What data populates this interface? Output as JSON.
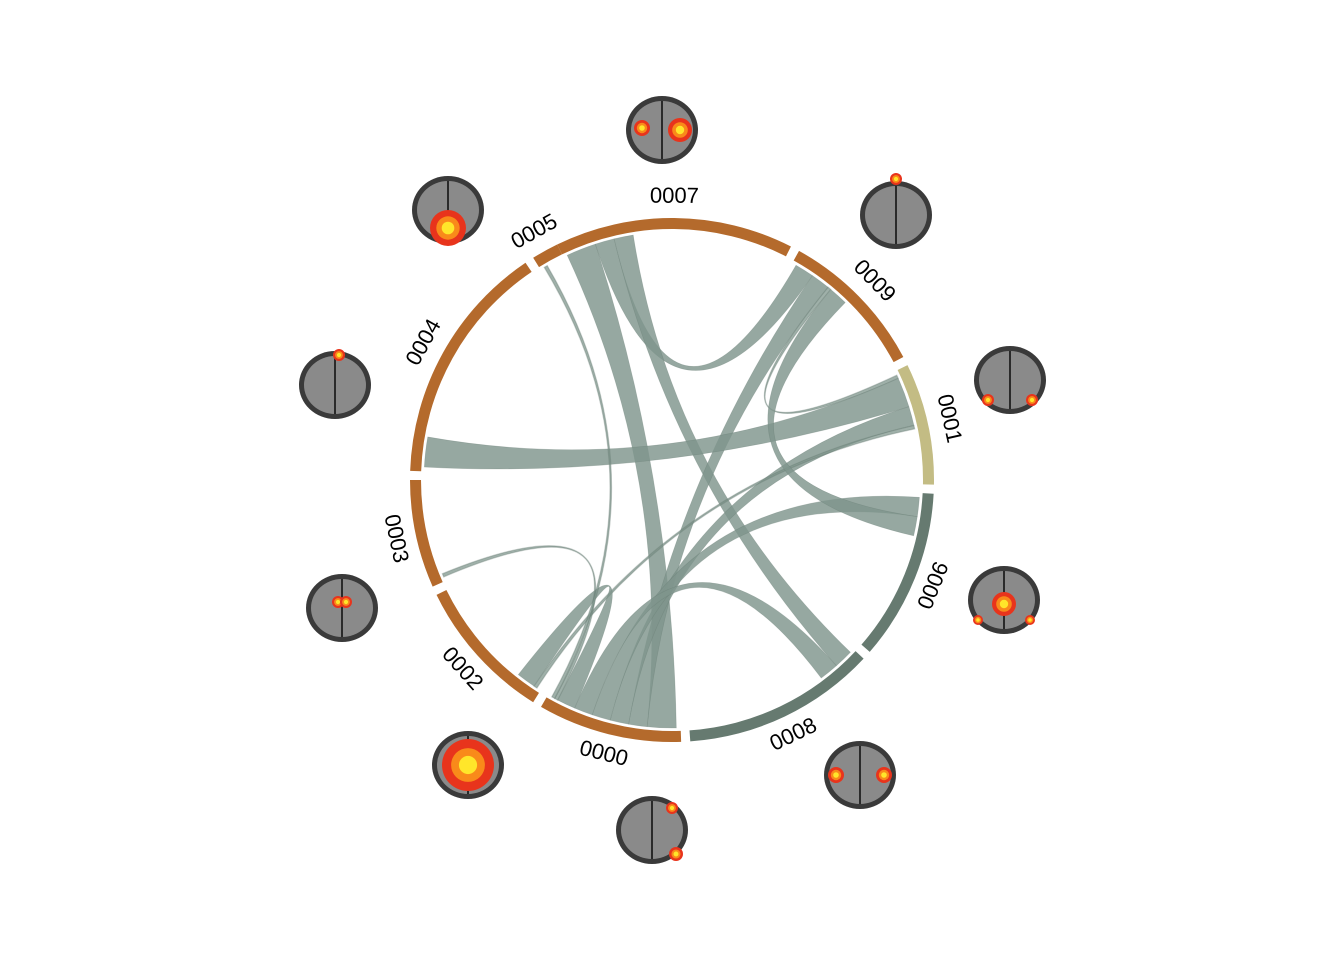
{
  "colors": {
    "ribbon": "#7f958c",
    "ribbon_dark": "#65786f",
    "brain_gray": "#8a8a8a",
    "activation_red": "#e8341c",
    "activation_orange": "#f98a1a",
    "activation_yellow": "#ffe62a"
  },
  "sectors": [
    {
      "id": "0007",
      "label": "0007",
      "color": "#b46a2c"
    },
    {
      "id": "0009",
      "label": "0009",
      "color": "#b46a2c"
    },
    {
      "id": "0001",
      "label": "0001",
      "color": "#c3bc84"
    },
    {
      "id": "0006",
      "label": "0006",
      "color": "#667a70"
    },
    {
      "id": "0008",
      "label": "0008",
      "color": "#667a70"
    },
    {
      "id": "0000",
      "label": "0000",
      "color": "#b46a2c"
    },
    {
      "id": "0002",
      "label": "0002",
      "color": "#b46a2c"
    },
    {
      "id": "0003",
      "label": "0003",
      "color": "#b46a2c"
    },
    {
      "id": "0004",
      "label": "0004",
      "color": "#b46a2c"
    },
    {
      "id": "0005",
      "label": "0005",
      "color": "#b46a2c"
    }
  ],
  "links": [
    {
      "source": "0007",
      "target": "0000",
      "weight": "strong"
    },
    {
      "source": "0007",
      "target": "0009",
      "weight": "medium"
    },
    {
      "source": "0007",
      "target": "0008",
      "weight": "medium"
    },
    {
      "source": "0009",
      "target": "0000",
      "weight": "medium"
    },
    {
      "source": "0009",
      "target": "0001",
      "weight": "weak"
    },
    {
      "source": "0001",
      "target": "0004",
      "weight": "strong"
    },
    {
      "source": "0001",
      "target": "0000",
      "weight": "medium"
    },
    {
      "source": "0001",
      "target": "0002",
      "weight": "weak"
    },
    {
      "source": "0006",
      "target": "0000",
      "weight": "medium"
    },
    {
      "source": "0006",
      "target": "0009",
      "weight": "medium"
    },
    {
      "source": "0008",
      "target": "0000",
      "weight": "medium"
    },
    {
      "source": "0002",
      "target": "0000",
      "weight": "medium"
    },
    {
      "source": "0003",
      "target": "0000",
      "weight": "weak"
    },
    {
      "source": "0005",
      "target": "0000",
      "weight": "weak"
    }
  ]
}
